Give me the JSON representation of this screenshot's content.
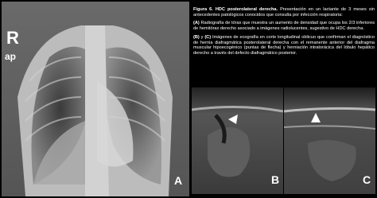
{
  "figure": {
    "panels": [
      {
        "letter": "A",
        "side": "R",
        "view": "ap"
      },
      {
        "letter": "B"
      },
      {
        "letter": "C"
      }
    ],
    "caption": {
      "title": "Figura 6. HDC posterolateral derecha.",
      "intro": "Presentación en un lactante de 3 meses sin antecedentes patológicos conocidos que consulta por infección respiratoria:",
      "part_a": {
        "label": "(A)",
        "text": "Radiografía de tórax que muestra un aumento de densidad que ocupa los 2/3 inferiores de hemitórax derecho asociado a imágenes radiolucentes, sugestivo de HDC derecha."
      },
      "part_bc": {
        "label_b": "(B)",
        "joiner": "y",
        "label_c": "(C)",
        "text": "Imágenes de ecografía en corte longitudinal oblicuo que confirman el diagnóstico de hernia diafragmática posterolateral derecha con el remanente anterior del diafragma muscular hipoecogénico (puntas de flecha) y herniación intratorácica del lóbulo hepático derecho a través del defecto diafragmático posterior."
      }
    }
  }
}
